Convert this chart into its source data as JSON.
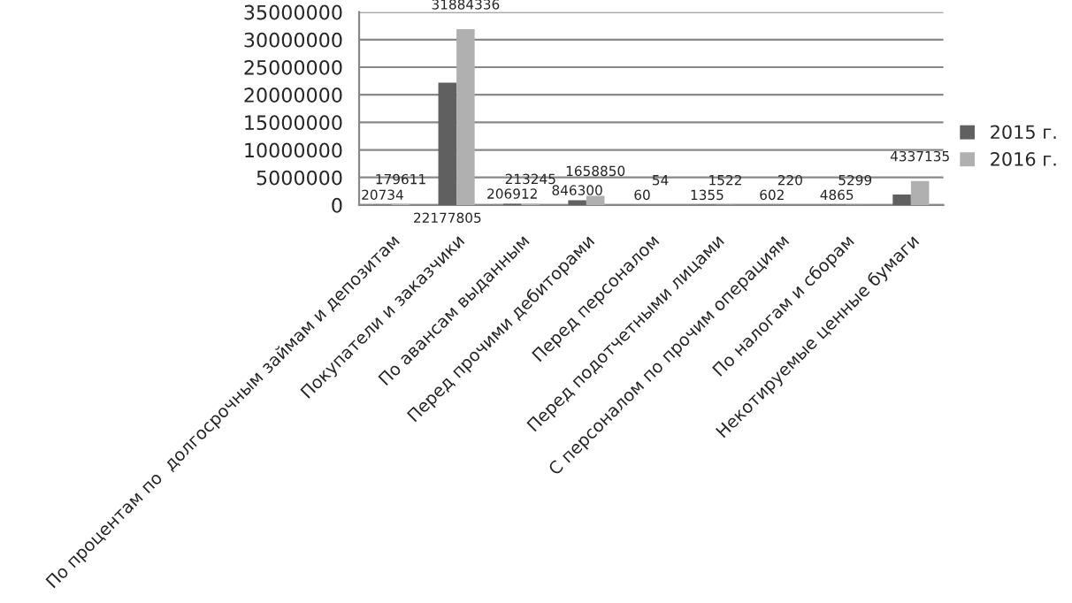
{
  "chart_data": {
    "type": "bar",
    "categories": [
      "По процентам по  долгосрочным займам и депозитам",
      "Покупатели и заказчики",
      "По авансам выданным",
      "Перед прочими дебиторами",
      "Перед персоналом",
      "Перед подотчетными лицами",
      "С персоналом по прочим операциям",
      "По налогам и сборам",
      "Некотируемые ценные бумаги"
    ],
    "series": [
      {
        "name": "2015 г.",
        "color": "#606060",
        "values": [
          20734,
          22177805,
          206912,
          846300,
          60,
          1355,
          602,
          4865,
          1900000
        ],
        "value_labels": [
          "20734",
          "22177805",
          "206912",
          "846300",
          "60",
          "1355",
          "602",
          "4865",
          null
        ]
      },
      {
        "name": "2016 г.",
        "color": "#b0b0b0",
        "values": [
          179611,
          31884336,
          213245,
          1658850,
          54,
          1522,
          220,
          5299,
          4337135
        ],
        "value_labels": [
          "179611",
          "31884336",
          "213245",
          "1658850",
          "54",
          "1522",
          "220",
          "5299",
          "4337135"
        ]
      }
    ],
    "ylim": [
      0,
      35000000
    ],
    "yticks": [
      0,
      5000000,
      10000000,
      15000000,
      20000000,
      25000000,
      30000000,
      35000000
    ],
    "grid": "y",
    "legend": "right"
  }
}
